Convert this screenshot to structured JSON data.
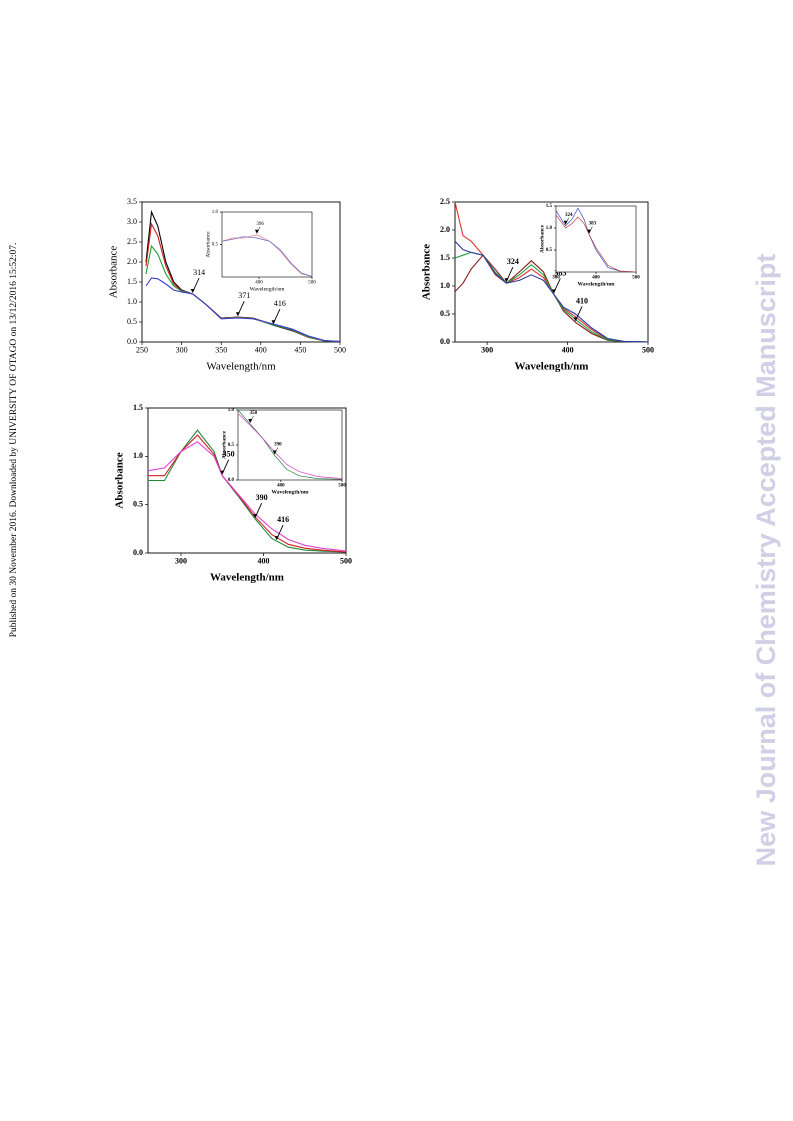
{
  "side_text": "Published on 30 November 2016. Downloaded by UNIVERSITY OF OTAGO on 13/12/2016 15:52:07.",
  "watermark": "New Journal of Chemistry Accepted Manuscript",
  "chart_data": [
    {
      "type": "line",
      "xlabel": "Wavelength/nm",
      "ylabel": "Absorbance",
      "x": [
        255,
        262,
        270,
        280,
        290,
        300,
        314,
        330,
        350,
        371,
        390,
        416,
        440,
        460,
        480,
        500
      ],
      "xlim": [
        250,
        500
      ],
      "xticks": [
        250,
        300,
        350,
        400,
        450,
        500
      ],
      "ylim": [
        0,
        3.5
      ],
      "yticks": [
        {
          "value": 0,
          "label": "0.0"
        },
        0.5,
        {
          "value": 1,
          "label": "1.0"
        },
        1.5,
        {
          "value": 2,
          "label": "2.0"
        },
        2.5,
        {
          "value": 3,
          "label": "3.0"
        },
        3.5
      ],
      "series": [
        {
          "color": "#000000",
          "values": [
            2.0,
            3.25,
            2.9,
            2.0,
            1.5,
            1.3,
            1.2,
            0.95,
            0.6,
            0.62,
            0.6,
            0.42,
            0.28,
            0.12,
            0.03,
            0.01
          ]
        },
        {
          "color": "#d21e1e",
          "values": [
            1.9,
            2.95,
            2.65,
            1.9,
            1.45,
            1.28,
            1.2,
            0.95,
            0.6,
            0.62,
            0.6,
            0.43,
            0.29,
            0.12,
            0.03,
            0.01
          ]
        },
        {
          "color": "#1e9e3a",
          "values": [
            1.7,
            2.4,
            2.2,
            1.7,
            1.4,
            1.27,
            1.2,
            0.95,
            0.59,
            0.61,
            0.59,
            0.43,
            0.3,
            0.13,
            0.03,
            0.01
          ]
        },
        {
          "color": "#3a3ad0",
          "values": [
            1.4,
            1.6,
            1.58,
            1.45,
            1.3,
            1.25,
            1.2,
            0.95,
            0.58,
            0.6,
            0.58,
            0.45,
            0.32,
            0.15,
            0.04,
            0.01
          ]
        }
      ],
      "annotations": [
        "314",
        "371",
        "416"
      ],
      "inset": {
        "type": "line",
        "xlabel": "Wavelength/nm",
        "ylabel": "Absorbance",
        "x": [
          330,
          350,
          370,
          396,
          420,
          440,
          460,
          480,
          500
        ],
        "xlim": [
          330,
          500
        ],
        "xticks": [
          400,
          500
        ],
        "ylim": [
          0,
          1
        ],
        "yticks": [
          0.5,
          {
            "value": 1,
            "label": "1.0"
          }
        ],
        "series": [
          {
            "color": "#e08080",
            "values": [
              0.55,
              0.6,
              0.6,
              0.65,
              0.55,
              0.4,
              0.2,
              0.05,
              0.01
            ]
          },
          {
            "color": "#6060d0",
            "values": [
              0.55,
              0.58,
              0.62,
              0.6,
              0.55,
              0.42,
              0.22,
              0.06,
              0.01
            ]
          }
        ],
        "annotations": [
          "396"
        ]
      }
    },
    {
      "type": "line",
      "xlabel": "Wavelength/nm",
      "ylabel": "Absorbance",
      "x": [
        260,
        270,
        280,
        295,
        310,
        324,
        340,
        355,
        370,
        383,
        395,
        410,
        430,
        450,
        470,
        500
      ],
      "xlim": [
        260,
        500
      ],
      "xticks": [
        300,
        400,
        500
      ],
      "ylim": [
        0,
        2.5
      ],
      "yticks": [
        {
          "value": 0,
          "label": "0.0"
        },
        0.5,
        {
          "value": 1,
          "label": "1.0"
        },
        1.5,
        {
          "value": 2,
          "label": "2.0"
        },
        2.5
      ],
      "series": [
        {
          "color": "#8b1a1a",
          "values": [
            0.9,
            1.05,
            1.3,
            1.55,
            1.3,
            1.05,
            1.25,
            1.45,
            1.25,
            0.85,
            0.55,
            0.35,
            0.15,
            0.03,
            0.01,
            0
          ]
        },
        {
          "color": "#e03030",
          "values": [
            2.5,
            1.9,
            1.8,
            1.55,
            1.2,
            1.05,
            1.15,
            1.3,
            1.15,
            0.85,
            0.6,
            0.45,
            0.22,
            0.05,
            0.01,
            0
          ]
        },
        {
          "color": "#20a040",
          "values": [
            1.5,
            1.55,
            1.6,
            1.55,
            1.25,
            1.05,
            1.2,
            1.38,
            1.2,
            0.85,
            0.58,
            0.4,
            0.18,
            0.04,
            0.01,
            0
          ]
        },
        {
          "color": "#2a3aa0",
          "values": [
            1.8,
            1.65,
            1.6,
            1.55,
            1.22,
            1.05,
            1.1,
            1.2,
            1.1,
            0.85,
            0.62,
            0.5,
            0.25,
            0.06,
            0.01,
            0
          ]
        }
      ],
      "annotations": [
        "324",
        "383",
        "410"
      ],
      "inset": {
        "type": "line",
        "xlabel": "Wavelength/nm",
        "ylabel": "Absorbance",
        "x": [
          300,
          320,
          324,
          340,
          355,
          370,
          383,
          400,
          430,
          460,
          500
        ],
        "xlim": [
          300,
          500
        ],
        "xticks": [
          300,
          400,
          500
        ],
        "ylim": [
          0,
          1.5
        ],
        "yticks": [
          0.5,
          {
            "value": 1,
            "label": "1.0"
          },
          1.5
        ],
        "series": [
          {
            "color": "#3050c0",
            "values": [
              1.4,
              1.1,
              1.05,
              1.2,
              1.45,
              1.2,
              0.85,
              0.5,
              0.1,
              0.02,
              0
            ]
          },
          {
            "color": "#c04040",
            "values": [
              1.3,
              1.05,
              1.0,
              1.1,
              1.25,
              1.1,
              0.85,
              0.55,
              0.15,
              0.02,
              0
            ]
          }
        ],
        "annotations": [
          "324",
          "383"
        ]
      }
    },
    {
      "type": "line",
      "xlabel": "Wavelength/nm",
      "ylabel": "Absorbance",
      "x": [
        260,
        280,
        300,
        320,
        340,
        350,
        370,
        390,
        410,
        430,
        450,
        470,
        500
      ],
      "xlim": [
        260,
        500
      ],
      "xticks": [
        300,
        400,
        500
      ],
      "ylim": [
        0,
        1.5
      ],
      "yticks": [
        {
          "value": 0,
          "label": "0.0"
        },
        0.5,
        {
          "value": 1,
          "label": "1.0"
        },
        1.5
      ],
      "series": [
        {
          "color": "#1e8a3a",
          "values": [
            0.75,
            0.75,
            1.05,
            1.27,
            1.05,
            0.8,
            0.58,
            0.35,
            0.15,
            0.06,
            0.03,
            0.02,
            0.01
          ]
        },
        {
          "color": "#d02020",
          "values": [
            0.8,
            0.8,
            1.05,
            1.22,
            1.02,
            0.8,
            0.59,
            0.37,
            0.19,
            0.09,
            0.05,
            0.03,
            0.01
          ]
        },
        {
          "color": "#e040d0",
          "values": [
            0.85,
            0.88,
            1.05,
            1.15,
            1.0,
            0.8,
            0.6,
            0.4,
            0.25,
            0.14,
            0.08,
            0.05,
            0.02
          ]
        }
      ],
      "annotations": [
        "350",
        "390",
        "416"
      ],
      "inset": {
        "type": "line",
        "xlabel": "Wavelength/nm",
        "ylabel": "Absorbance",
        "x": [
          330,
          350,
          370,
          390,
          410,
          430,
          460,
          500
        ],
        "xlim": [
          330,
          500
        ],
        "xticks": [
          400,
          500
        ],
        "ylim": [
          0,
          1
        ],
        "yticks": [
          {
            "value": 0,
            "label": "0.0"
          },
          0.5,
          {
            "value": 1,
            "label": "1.0"
          }
        ],
        "series": [
          {
            "color": "#208040",
            "values": [
              1.0,
              0.8,
              0.6,
              0.35,
              0.15,
              0.06,
              0.02,
              0.01
            ]
          },
          {
            "color": "#d040c0",
            "values": [
              0.95,
              0.78,
              0.6,
              0.4,
              0.22,
              0.12,
              0.05,
              0.02
            ]
          }
        ],
        "annotations": [
          "350",
          "390"
        ]
      }
    }
  ]
}
